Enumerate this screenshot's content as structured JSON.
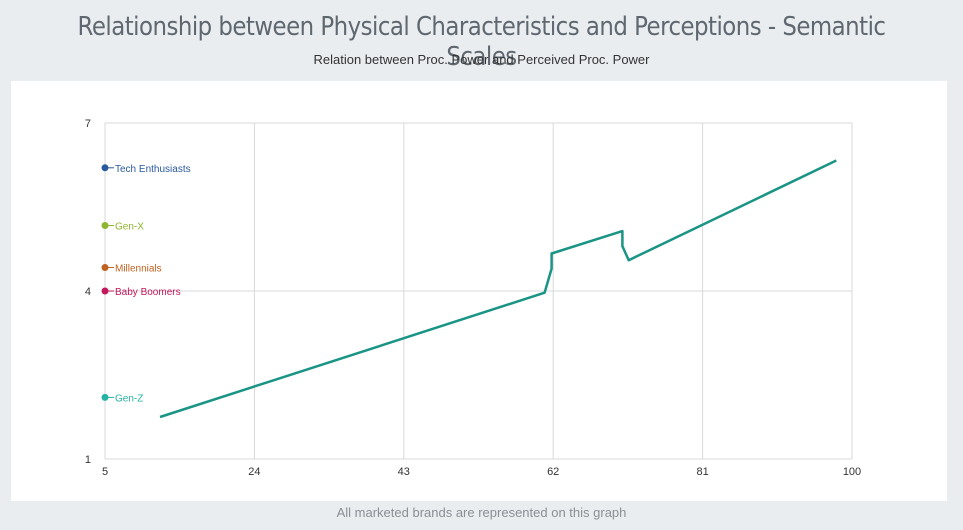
{
  "header": {
    "title": "Relationship between Physical Characteristics and Perceptions - Semantic Scales",
    "subtitle": "Relation between Proc. Power and Perceived Proc. Power"
  },
  "footer": {
    "note": "All marketed brands are represented on this graph"
  },
  "chart_data": {
    "type": "line",
    "title": "Relationship between Physical Characteristics and Perceptions - Semantic Scales",
    "subtitle": "Relation between Proc. Power and Perceived Proc. Power",
    "xlabel": "",
    "ylabel": "",
    "xlim": [
      5,
      100
    ],
    "ylim": [
      1,
      7
    ],
    "x_ticks": [
      5,
      24,
      43,
      62,
      81,
      100
    ],
    "y_ticks": [
      1,
      4,
      7
    ],
    "grid": true,
    "line_color": "#1a9485",
    "series": [
      {
        "values": [
          {
            "x": 12,
            "y": 1.75
          },
          {
            "x": 60.9,
            "y": 3.97
          },
          {
            "x": 61.8,
            "y": 4.4
          },
          {
            "x": 61.8,
            "y": 4.67
          },
          {
            "x": 70.8,
            "y": 5.07
          },
          {
            "x": 70.8,
            "y": 4.8
          },
          {
            "x": 71.6,
            "y": 4.55
          },
          {
            "x": 98,
            "y": 6.33
          }
        ]
      }
    ],
    "segments": [
      {
        "name": "Tech Enthusiasts",
        "y": 6.2,
        "color": "#2a5a9e"
      },
      {
        "name": "Gen-X",
        "y": 5.17,
        "color": "#8db52f"
      },
      {
        "name": "Millennials",
        "y": 4.42,
        "color": "#c0611f"
      },
      {
        "name": "Baby Boomers",
        "y": 4.0,
        "color": "#c2185b"
      },
      {
        "name": "Gen-Z",
        "y": 2.1,
        "color": "#26b3a3"
      }
    ]
  }
}
